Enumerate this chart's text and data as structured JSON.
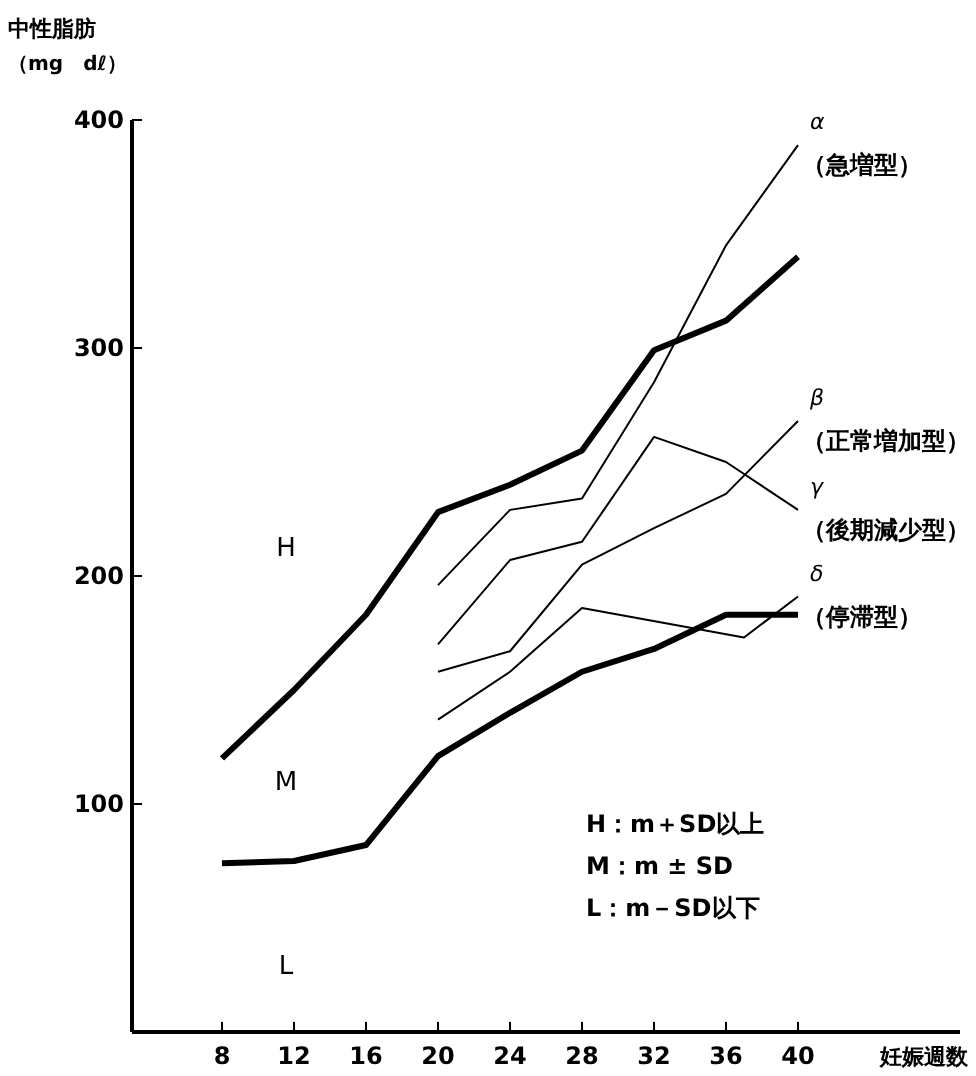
{
  "chart_data": {
    "type": "line",
    "ylabel": "中性脂肪（mg　dℓ）",
    "xlabel": "妊娠週数",
    "xlim": [
      3,
      49
    ],
    "xticks": [
      8,
      12,
      16,
      20,
      24,
      28,
      32,
      36,
      40
    ],
    "ylim": [
      0,
      400
    ],
    "yticks": [
      100,
      200,
      300,
      400
    ],
    "x": [
      8,
      12,
      16,
      20,
      24,
      28,
      32,
      36,
      40
    ],
    "series": [
      {
        "color": "#000000",
        "values": [
          120,
          150,
          183,
          228,
          240,
          255,
          299,
          312,
          340
        ]
      },
      {
        "color": "#000000",
        "values": [
          74,
          75,
          82,
          121,
          140,
          158,
          168,
          183,
          183
        ]
      },
      {
        "name": "α（急増型）",
        "color": "#000000",
        "x": [
          20,
          24,
          28,
          32,
          36,
          40
        ],
        "values": [
          196,
          229,
          234,
          285,
          345,
          389
        ]
      },
      {
        "name": "β（正常増加型）",
        "color": "#000000",
        "x": [
          20,
          24,
          28,
          32,
          36,
          40
        ],
        "values": [
          158,
          167,
          205,
          221,
          236,
          268
        ]
      },
      {
        "name": "γ（後期減少型）",
        "color": "#000000",
        "x": [
          20,
          24,
          28,
          32,
          36,
          40
        ],
        "values": [
          170,
          207,
          215,
          261,
          250,
          229
        ]
      },
      {
        "name": "δ（停滞型）",
        "color": "#000000",
        "x": [
          20,
          24,
          28,
          37,
          40
        ],
        "values": [
          137,
          158,
          186,
          173,
          191
        ]
      }
    ],
    "annotations": [
      "H",
      "M",
      "L",
      "H：m＋SD以上",
      "M：m ± SD",
      "L：m－SD以下"
    ],
    "grid": false,
    "marker": "none"
  }
}
